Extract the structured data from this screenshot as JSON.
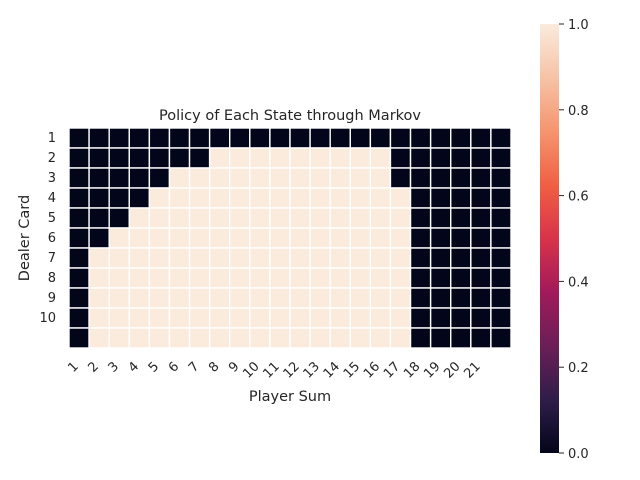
{
  "chart_data": {
    "type": "heatmap",
    "title": "Policy of Each State through Markov",
    "xlabel": "Player Sum",
    "ylabel": "Dealer Card",
    "x_ticks": [
      "1",
      "2",
      "3",
      "4",
      "5",
      "6",
      "7",
      "8",
      "9",
      "10",
      "11",
      "12",
      "13",
      "14",
      "15",
      "16",
      "17",
      "18",
      "19",
      "20",
      "21"
    ],
    "y_ticks": [
      "1",
      "2",
      "3",
      "4",
      "5",
      "6",
      "7",
      "8",
      "9",
      "10"
    ],
    "n_cols": 22,
    "n_rows": 11,
    "values": [
      [
        0,
        0,
        0,
        0,
        0,
        0,
        0,
        0,
        0,
        0,
        0,
        0,
        0,
        0,
        0,
        0,
        0,
        0,
        0,
        0,
        0,
        0
      ],
      [
        0,
        0,
        0,
        0,
        0,
        0,
        0,
        1,
        1,
        1,
        1,
        1,
        1,
        1,
        1,
        1,
        0,
        0,
        0,
        0,
        0,
        0
      ],
      [
        0,
        0,
        0,
        0,
        0,
        1,
        1,
        1,
        1,
        1,
        1,
        1,
        1,
        1,
        1,
        1,
        0,
        0,
        0,
        0,
        0,
        0
      ],
      [
        0,
        0,
        0,
        0,
        1,
        1,
        1,
        1,
        1,
        1,
        1,
        1,
        1,
        1,
        1,
        1,
        1,
        0,
        0,
        0,
        0,
        0
      ],
      [
        0,
        0,
        0,
        1,
        1,
        1,
        1,
        1,
        1,
        1,
        1,
        1,
        1,
        1,
        1,
        1,
        1,
        0,
        0,
        0,
        0,
        0
      ],
      [
        0,
        0,
        1,
        1,
        1,
        1,
        1,
        1,
        1,
        1,
        1,
        1,
        1,
        1,
        1,
        1,
        1,
        0,
        0,
        0,
        0,
        0
      ],
      [
        0,
        1,
        1,
        1,
        1,
        1,
        1,
        1,
        1,
        1,
        1,
        1,
        1,
        1,
        1,
        1,
        1,
        0,
        0,
        0,
        0,
        0
      ],
      [
        0,
        1,
        1,
        1,
        1,
        1,
        1,
        1,
        1,
        1,
        1,
        1,
        1,
        1,
        1,
        1,
        1,
        0,
        0,
        0,
        0,
        0
      ],
      [
        0,
        1,
        1,
        1,
        1,
        1,
        1,
        1,
        1,
        1,
        1,
        1,
        1,
        1,
        1,
        1,
        1,
        0,
        0,
        0,
        0,
        0
      ],
      [
        0,
        1,
        1,
        1,
        1,
        1,
        1,
        1,
        1,
        1,
        1,
        1,
        1,
        1,
        1,
        1,
        1,
        0,
        0,
        0,
        0,
        0
      ],
      [
        0,
        1,
        1,
        1,
        1,
        1,
        1,
        1,
        1,
        1,
        1,
        1,
        1,
        1,
        1,
        1,
        1,
        0,
        0,
        0,
        0,
        0
      ]
    ],
    "colorbar": {
      "range": [
        0.0,
        1.0
      ],
      "ticks": [
        "0.0",
        "0.2",
        "0.4",
        "0.6",
        "0.8",
        "1.0"
      ],
      "colormap": [
        "#03051a",
        "#2f1d49",
        "#6b1f56",
        "#a11a5b",
        "#d8334a",
        "#f06043",
        "#f5956e",
        "#f6c3a6",
        "#faebdd"
      ]
    },
    "grid": true,
    "cell_edge_color": "#ffffff"
  }
}
